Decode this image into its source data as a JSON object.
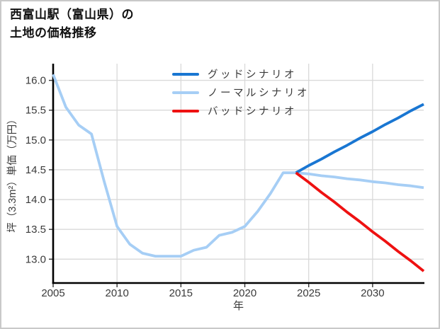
{
  "page": {
    "background": "#ffffff",
    "border_color": "#c9c9c9"
  },
  "header": {
    "title_line1": "西富山駅（富山県）の",
    "title_line2": "土地の価格推移"
  },
  "colors": {
    "good": "#1976d2",
    "normal": "#a6cef5",
    "bad": "#ee1111",
    "grid": "#d9d9d9",
    "spine": "#000000",
    "tick_text": "#3a3a3a",
    "title_text": "#111111"
  },
  "chart_data": {
    "type": "line",
    "title": "西富山駅（富山県）の土地の価格推移",
    "xlabel": "年",
    "ylabel": "坪（3.3m²）単価（万円）",
    "xlim": [
      2005,
      2034
    ],
    "ylim": [
      12.6,
      16.28
    ],
    "xticks": [
      2005,
      2010,
      2015,
      2020,
      2025,
      2030
    ],
    "yticks": [
      13.0,
      13.5,
      14.0,
      14.5,
      15.0,
      15.5,
      16.0
    ],
    "ytick_labels": [
      "13.0",
      "13.5",
      "14.0",
      "14.5",
      "15.0",
      "15.5",
      "16.0"
    ],
    "grid": true,
    "legend_position": "upper-left-inside",
    "series": [
      {
        "name": "グッドシナリオ",
        "color": "#1976d2",
        "x": [
          2024,
          2025,
          2026,
          2027,
          2028,
          2029,
          2030,
          2031,
          2032,
          2033,
          2034
        ],
        "values": [
          14.45,
          14.57,
          14.68,
          14.8,
          14.91,
          15.03,
          15.14,
          15.26,
          15.37,
          15.49,
          15.6
        ]
      },
      {
        "name": "ノーマルシナリオ",
        "color": "#a6cef5",
        "x": [
          2005,
          2006,
          2007,
          2008,
          2009,
          2010,
          2011,
          2012,
          2013,
          2014,
          2015,
          2016,
          2017,
          2018,
          2019,
          2020,
          2021,
          2022,
          2023,
          2024,
          2025,
          2026,
          2027,
          2028,
          2029,
          2030,
          2031,
          2032,
          2033,
          2034
        ],
        "values": [
          16.1,
          15.55,
          15.25,
          15.1,
          14.3,
          13.55,
          13.25,
          13.1,
          13.05,
          13.05,
          13.05,
          13.15,
          13.2,
          13.4,
          13.45,
          13.55,
          13.8,
          14.1,
          14.45,
          14.45,
          14.43,
          14.4,
          14.38,
          14.35,
          14.33,
          14.3,
          14.28,
          14.25,
          14.23,
          14.2
        ]
      },
      {
        "name": "バッドシナリオ",
        "color": "#ee1111",
        "x": [
          2024,
          2025,
          2026,
          2027,
          2028,
          2029,
          2030,
          2031,
          2032,
          2033,
          2034
        ],
        "values": [
          14.45,
          14.29,
          14.12,
          13.96,
          13.79,
          13.63,
          13.46,
          13.3,
          13.13,
          12.97,
          12.8
        ]
      }
    ]
  }
}
